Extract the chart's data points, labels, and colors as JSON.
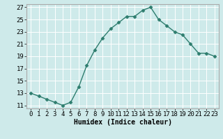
{
  "x": [
    0,
    1,
    2,
    3,
    4,
    5,
    6,
    7,
    8,
    9,
    10,
    11,
    12,
    13,
    14,
    15,
    16,
    17,
    18,
    19,
    20,
    21,
    22,
    23
  ],
  "y": [
    13,
    12.5,
    12,
    11.5,
    11,
    11.5,
    14,
    17.5,
    20,
    22,
    23.5,
    24.5,
    25.5,
    25.5,
    26.5,
    27,
    25,
    24,
    23,
    22.5,
    21,
    19.5,
    19.5,
    19
  ],
  "line_color": "#2e7d6e",
  "marker": "D",
  "marker_size": 2.5,
  "bg_color": "#ceeaea",
  "grid_color": "#b0d8d8",
  "xlabel": "Humidex (Indice chaleur)",
  "ylim": [
    10.5,
    27.5
  ],
  "xlim": [
    -0.5,
    23.5
  ],
  "yticks": [
    11,
    13,
    15,
    17,
    19,
    21,
    23,
    25,
    27
  ],
  "xtick_labels": [
    "0",
    "1",
    "2",
    "3",
    "4",
    "5",
    "6",
    "7",
    "8",
    "9",
    "10",
    "11",
    "12",
    "13",
    "14",
    "15",
    "16",
    "17",
    "18",
    "19",
    "20",
    "21",
    "22",
    "23"
  ],
  "label_fontsize": 7,
  "tick_fontsize": 6.5
}
